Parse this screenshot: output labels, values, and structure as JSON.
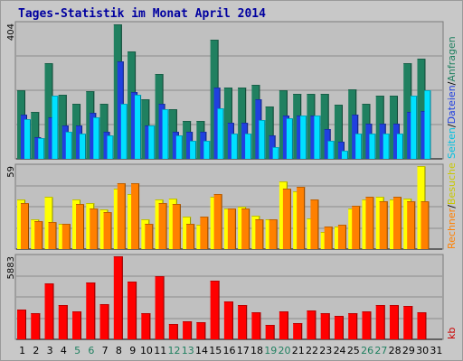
{
  "title": "Tages-Statistik im Monat April 2014",
  "chart_data": [
    {
      "type": "bar",
      "panel": "top",
      "ymax_label": "404",
      "categories": [
        "1",
        "2",
        "3",
        "4",
        "5",
        "6",
        "7",
        "8",
        "9",
        "10",
        "11",
        "12",
        "13",
        "14",
        "15",
        "16",
        "17",
        "18",
        "19",
        "20",
        "21",
        "22",
        "23",
        "24",
        "25",
        "26",
        "27",
        "28",
        "29",
        "30",
        "31"
      ],
      "series": [
        {
          "name": "Anfragen",
          "color": "#208060",
          "values": [
            205,
            140,
            285,
            190,
            163,
            202,
            163,
            402,
            320,
            178,
            253,
            148,
            112,
            112,
            355,
            213,
            214,
            220,
            155,
            205,
            193,
            193,
            193,
            162,
            208,
            163,
            188,
            188,
            285,
            300,
            0
          ]
        },
        {
          "name": "Dateien",
          "color": "#2040e0",
          "values": [
            133,
            65,
            125,
            100,
            100,
            138,
            80,
            290,
            200,
            100,
            163,
            82,
            82,
            82,
            213,
            108,
            108,
            178,
            70,
            130,
            130,
            130,
            90,
            50,
            133,
            105,
            105,
            105,
            140,
            143,
            0
          ]
        },
        {
          "name": "Seiten",
          "color": "#00e0ff",
          "values": [
            118,
            63,
            188,
            80,
            75,
            125,
            70,
            165,
            190,
            100,
            148,
            70,
            55,
            55,
            150,
            75,
            75,
            115,
            35,
            120,
            130,
            130,
            55,
            25,
            75,
            75,
            75,
            75,
            188,
            205,
            0
          ]
        }
      ]
    },
    {
      "type": "bar",
      "panel": "middle",
      "ymax_label": "59",
      "categories": [
        "1",
        "2",
        "3",
        "4",
        "5",
        "6",
        "7",
        "8",
        "9",
        "10",
        "11",
        "12",
        "13",
        "14",
        "15",
        "16",
        "17",
        "18",
        "19",
        "20",
        "21",
        "22",
        "23",
        "24",
        "25",
        "26",
        "27",
        "28",
        "29",
        "30",
        "31"
      ],
      "series": [
        {
          "name": "Besuche",
          "color": "#ffff00",
          "values": [
            35,
            21,
            37,
            18,
            35,
            33,
            28,
            43,
            39,
            21,
            35,
            36,
            23,
            17,
            37,
            29,
            30,
            24,
            21,
            48,
            41,
            22,
            12,
            16,
            29,
            35,
            37,
            35,
            36,
            59,
            0
          ]
        },
        {
          "name": "Rechner",
          "color": "#ff8000",
          "values": [
            33,
            20,
            19,
            18,
            32,
            29,
            26,
            47,
            47,
            18,
            33,
            32,
            18,
            23,
            39,
            29,
            29,
            21,
            21,
            43,
            44,
            35,
            16,
            17,
            31,
            37,
            34,
            37,
            34,
            34,
            0
          ]
        }
      ]
    },
    {
      "type": "bar",
      "panel": "bottom",
      "ymax_label": "5883",
      "unit": "kb",
      "categories": [
        "1",
        "2",
        "3",
        "4",
        "5",
        "6",
        "7",
        "8",
        "9",
        "10",
        "11",
        "12",
        "13",
        "14",
        "15",
        "16",
        "17",
        "18",
        "19",
        "20",
        "21",
        "22",
        "23",
        "24",
        "25",
        "26",
        "27",
        "28",
        "29",
        "30",
        "31"
      ],
      "series": [
        {
          "name": "kb",
          "color": "#ff0000",
          "values": [
            2111,
            1823,
            3957,
            2399,
            1967,
            4029,
            2495,
            5883,
            4077,
            1871,
            4460,
            1104,
            1295,
            1199,
            4173,
            2687,
            2399,
            1919,
            1055,
            1967,
            1151,
            2015,
            1871,
            1631,
            1823,
            1967,
            2447,
            2399,
            2351,
            1919,
            0
          ]
        }
      ]
    }
  ],
  "x_labels": [
    "1",
    "2",
    "3",
    "4",
    "5",
    "6",
    "7",
    "8",
    "9",
    "10",
    "11",
    "12",
    "13",
    "14",
    "15",
    "16",
    "17",
    "18",
    "19",
    "20",
    "21",
    "22",
    "23",
    "24",
    "25",
    "26",
    "27",
    "28",
    "29",
    "30",
    "31"
  ],
  "weekend_days": [
    "5",
    "6",
    "12",
    "13",
    "19",
    "20",
    "26",
    "27"
  ],
  "colors": {
    "weekday_label": "#000000",
    "weekend_label": "#208060",
    "sep": "#000000",
    "kb_label": "#cc0000",
    "rechner_label": "#ff8000",
    "besuche_label": "#c8c800",
    "seiten_label": "#00c0e0",
    "dateien_label": "#2040e0",
    "anfragen_label": "#208060"
  },
  "right_labels": {
    "top": [
      "Seiten",
      "/",
      "Dateien",
      "/",
      "Anfragen"
    ],
    "middle": [
      "Rechner",
      "/",
      "Besuche"
    ],
    "bottom": [
      "kb"
    ]
  }
}
